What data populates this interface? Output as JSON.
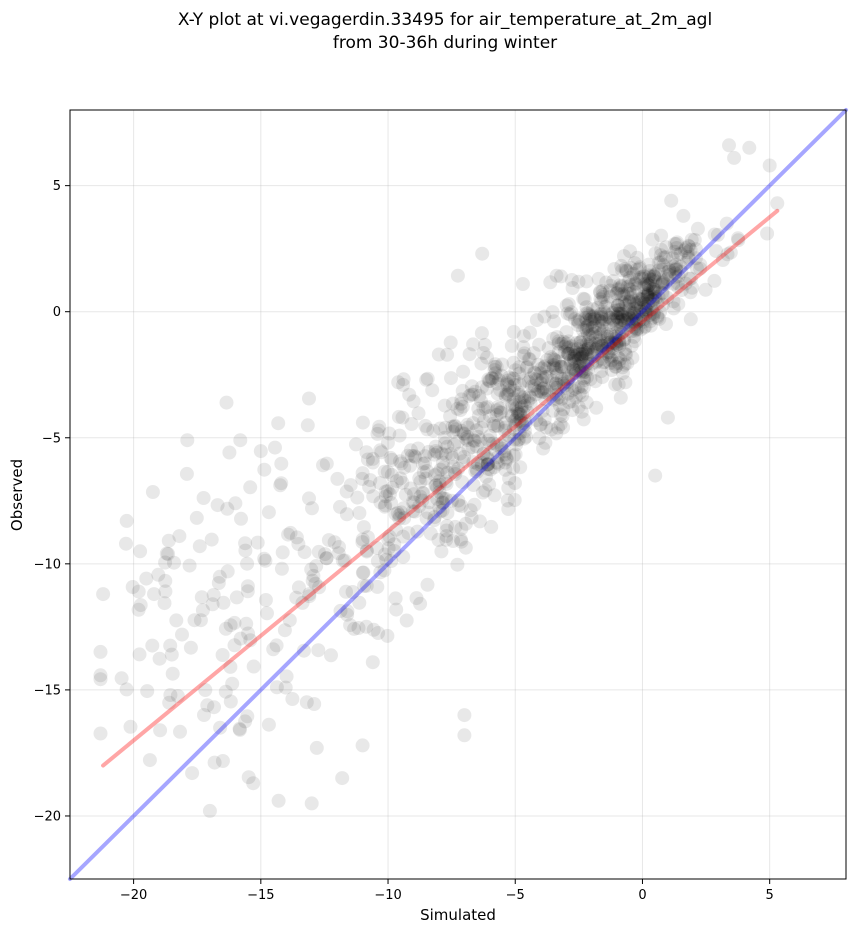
{
  "chart_data": {
    "type": "scatter",
    "title": "X-Y plot at vi.vegagerdin.33495 for air_temperature_at_2m_agl",
    "subtitle": "from 30-36h during winter",
    "xlabel": "Simulated",
    "ylabel": "Observed",
    "xlim": [
      -22.5,
      8
    ],
    "ylim": [
      -22.5,
      8
    ],
    "x_ticks": [
      -20,
      -15,
      -10,
      -5,
      0,
      5
    ],
    "y_ticks": [
      -20,
      -15,
      -10,
      -5,
      0,
      5
    ],
    "x_tick_labels": [
      "−20",
      "−15",
      "−10",
      "−5",
      "0",
      "5"
    ],
    "y_tick_labels": [
      "−20",
      "−15",
      "−10",
      "−5",
      "0",
      "5"
    ],
    "grid": true,
    "legend": "none",
    "point_color": "#000000",
    "point_opacity": 0.09,
    "point_count_approx": 1200,
    "points_sample": [
      [
        -21.2,
        -11.2
      ],
      [
        -20.3,
        -9.2
      ],
      [
        -19.8,
        -11.1
      ],
      [
        -19.2,
        -11.2
      ],
      [
        -18.5,
        -13.6
      ],
      [
        -18.2,
        -8.9
      ],
      [
        -17.7,
        -18.3
      ],
      [
        -17.4,
        -9.3
      ],
      [
        -17.0,
        -19.8
      ],
      [
        -16.6,
        -16.5
      ],
      [
        -16.3,
        -10.3
      ],
      [
        -16.0,
        -7.6
      ],
      [
        -15.3,
        -18.7
      ],
      [
        -14.3,
        -19.4
      ],
      [
        -14.2,
        -6.8
      ],
      [
        -13.0,
        -19.5
      ],
      [
        -12.8,
        -17.3
      ],
      [
        -11.8,
        -18.5
      ],
      [
        -11.0,
        -17.2
      ],
      [
        -10.6,
        -13.9
      ],
      [
        -9.9,
        -5.8
      ],
      [
        -9.6,
        -2.8
      ],
      [
        -8.5,
        -2.7
      ],
      [
        -7.0,
        -16.0
      ],
      [
        -7.0,
        -16.8
      ],
      [
        -6.3,
        2.3
      ],
      [
        -4.7,
        1.1
      ],
      [
        -3.2,
        1.4
      ],
      [
        -2.2,
        1.2
      ],
      [
        0.5,
        -6.5
      ],
      [
        1.0,
        -4.2
      ],
      [
        1.9,
        -0.3
      ],
      [
        3.4,
        6.6
      ],
      [
        3.6,
        6.1
      ],
      [
        4.2,
        6.5
      ],
      [
        5.0,
        5.8
      ],
      [
        5.3,
        4.3
      ],
      [
        4.9,
        3.1
      ],
      [
        -0.7,
        -2.1
      ],
      [
        0.0,
        0.5
      ]
    ],
    "series": [
      {
        "type": "line",
        "color": "#ff0000",
        "opacity": 0.35,
        "x": [
          -21.2,
          5.3
        ],
        "y": [
          -18.0,
          4.0
        ]
      },
      {
        "type": "line",
        "color": "#0000ff",
        "opacity": 0.35,
        "x": [
          -22.5,
          8
        ],
        "y": [
          -22.5,
          8
        ]
      }
    ]
  }
}
